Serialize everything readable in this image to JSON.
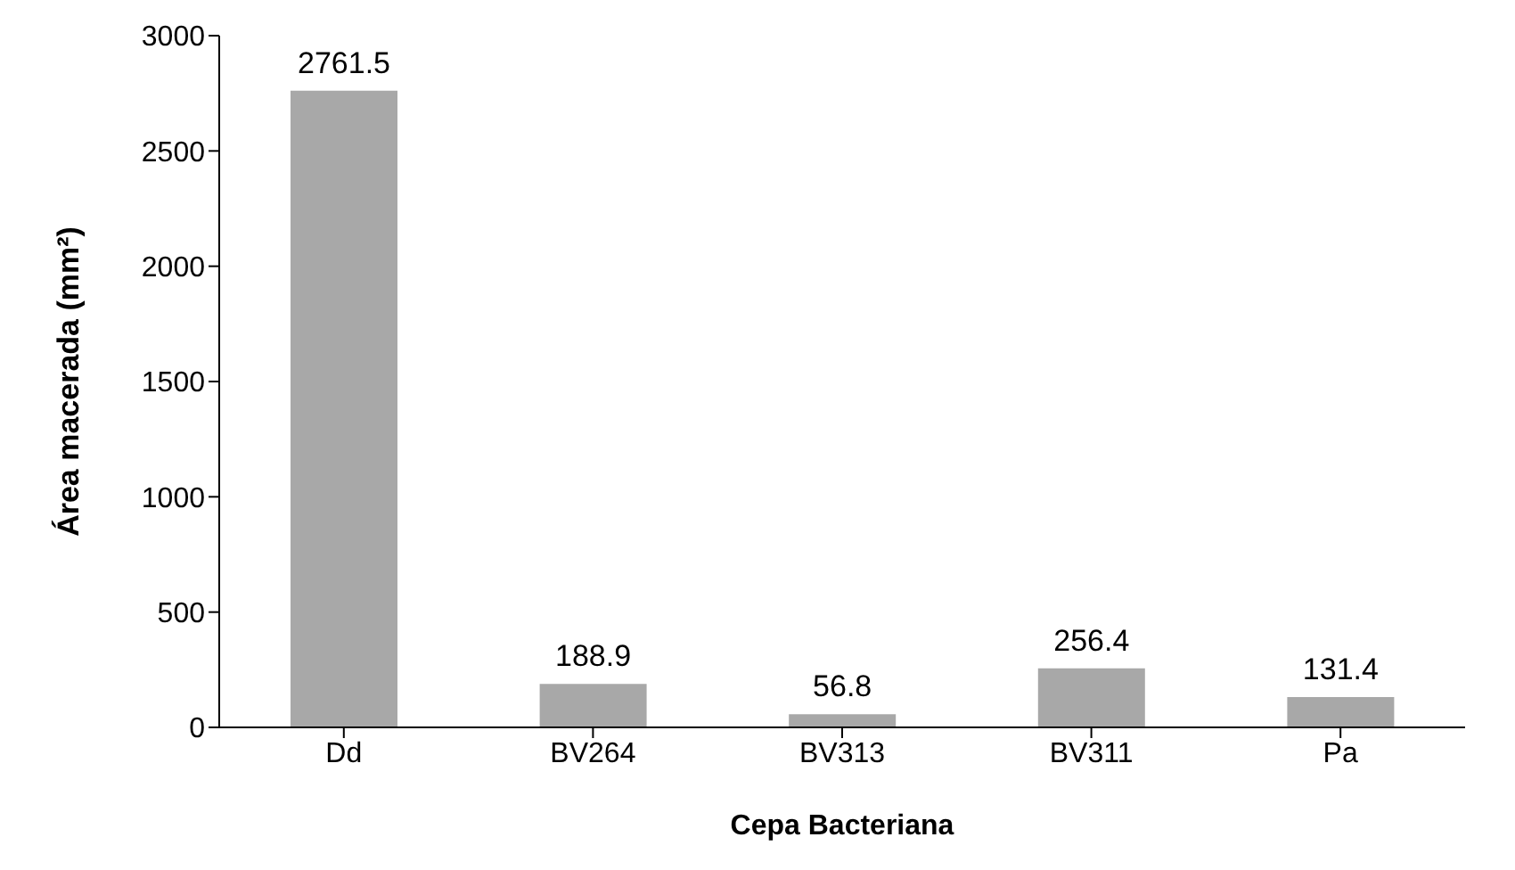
{
  "chart_data": {
    "type": "bar",
    "xlabel": "Cepa Bacteriana",
    "ylabel": "Área macerada (mm²)",
    "categories": [
      "Dd",
      "BV264",
      "BV313",
      "BV311",
      "Pa"
    ],
    "values": [
      2761.5,
      188.9,
      56.8,
      256.4,
      131.4
    ],
    "color": "#a8a8a8",
    "ylim": [
      0,
      3000
    ],
    "yticks": [
      0,
      500,
      1000,
      1500,
      2000,
      2500,
      3000
    ],
    "grid": false,
    "data_labels": true
  }
}
